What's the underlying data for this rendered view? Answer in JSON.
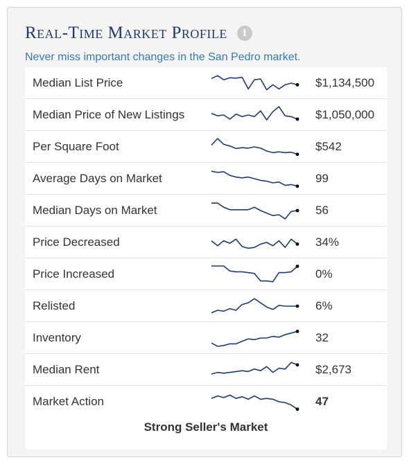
{
  "header": {
    "title": "Real-Time Market Profile",
    "info_icon": "info-icon",
    "subtitle": "Never miss important changes in the San Pedro market."
  },
  "colors": {
    "title": "#1f3a6e",
    "subtitle": "#337ab7",
    "sparkline": "#1f3a6e",
    "text": "#333333"
  },
  "metrics": [
    {
      "label": "Median List Price",
      "value": "$1,134,500",
      "trend": [
        0.22,
        0.05,
        0.3,
        0.18,
        0.2,
        0.15,
        0.85,
        0.3,
        0.25,
        0.9,
        0.6,
        0.85,
        0.6,
        0.5,
        0.6
      ]
    },
    {
      "label": "Median Price of New Listings",
      "value": "$1,050,000",
      "trend": [
        0.4,
        0.55,
        0.5,
        0.75,
        0.45,
        0.6,
        0.5,
        0.6,
        0.25,
        0.8,
        0.3,
        0.0,
        0.55,
        0.6,
        0.75
      ]
    },
    {
      "label": "Per Square Foot",
      "value": "$542",
      "trend": [
        0.4,
        0.0,
        0.35,
        0.45,
        0.6,
        0.55,
        0.58,
        0.5,
        0.58,
        0.75,
        0.85,
        0.8,
        0.85,
        0.82,
        0.95
      ]
    },
    {
      "label": "Average Days on Market",
      "value": "99",
      "trend": [
        0.05,
        0.12,
        0.08,
        0.3,
        0.4,
        0.45,
        0.4,
        0.5,
        0.6,
        0.65,
        0.75,
        0.7,
        0.9,
        0.85,
        0.95
      ]
    },
    {
      "label": "Median Days on Market",
      "value": "56",
      "trend": [
        0.05,
        0.05,
        0.3,
        0.45,
        0.45,
        0.45,
        0.45,
        0.3,
        0.5,
        0.65,
        0.8,
        0.75,
        1.0,
        0.55,
        0.5
      ]
    },
    {
      "label": "Price Decreased",
      "value": "34%",
      "trend": [
        0.4,
        0.7,
        0.4,
        0.55,
        0.3,
        0.75,
        0.85,
        0.8,
        0.6,
        0.5,
        0.7,
        0.4,
        0.8,
        0.3,
        0.6
      ]
    },
    {
      "label": "Price Increased",
      "value": "0%",
      "trend": [
        0.0,
        0.0,
        0.0,
        0.3,
        0.35,
        0.35,
        0.4,
        0.45,
        0.9,
        0.9,
        0.95,
        0.4,
        0.4,
        0.35,
        0.02
      ]
    },
    {
      "label": "Relisted",
      "value": "6%",
      "trend": [
        0.9,
        0.75,
        0.8,
        0.65,
        0.75,
        0.4,
        0.3,
        0.05,
        0.3,
        0.55,
        0.7,
        0.45,
        0.5,
        0.5,
        0.5
      ]
    },
    {
      "label": "Inventory",
      "value": "32",
      "trend": [
        0.8,
        1.0,
        0.95,
        0.85,
        0.85,
        0.7,
        0.55,
        0.6,
        0.5,
        0.5,
        0.4,
        0.45,
        0.3,
        0.2,
        0.1
      ]
    },
    {
      "label": "Median Rent",
      "value": "$2,673",
      "trend": [
        0.75,
        0.65,
        0.7,
        0.65,
        0.6,
        0.55,
        0.6,
        0.45,
        0.55,
        0.3,
        0.65,
        0.4,
        0.45,
        0.05,
        0.2
      ]
    },
    {
      "label": "Market Action",
      "value": "47",
      "trend": [
        0.3,
        0.15,
        0.25,
        0.1,
        0.3,
        0.2,
        0.35,
        0.15,
        0.35,
        0.3,
        0.35,
        0.5,
        0.55,
        0.7,
        0.95
      ]
    }
  ],
  "summary": "Strong Seller's Market"
}
